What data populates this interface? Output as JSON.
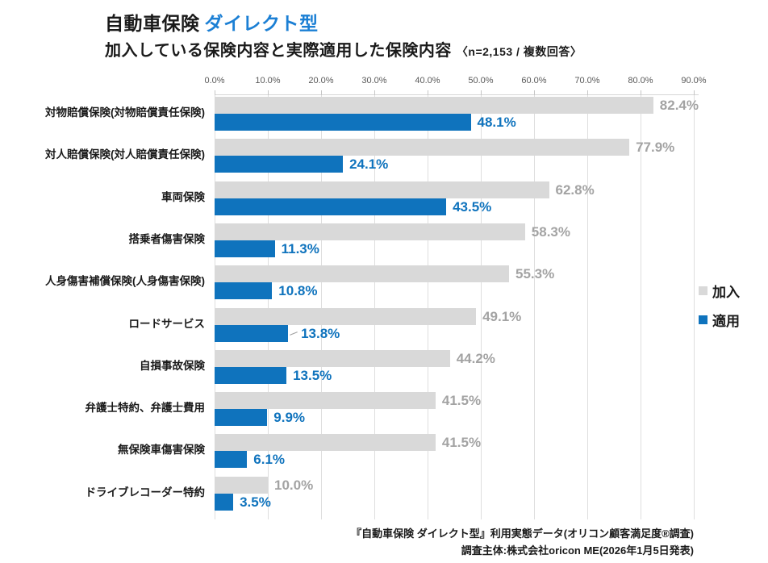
{
  "title": {
    "black": "自動車保険",
    "blue": "ダイレクト型"
  },
  "subtitle": {
    "main": "加入している保険内容と実際適用した保険内容",
    "note": "〈n=2,153 / 複数回答〉"
  },
  "colors": {
    "enrolled_bar": "#d9d9d9",
    "applied_bar": "#0f73bd",
    "enrolled_value_label": "#a3a3a3",
    "applied_value_label": "#0f73bd",
    "title_accent": "#1b7fd4",
    "axis_text": "#595959",
    "gridline": "#dedede"
  },
  "legend": [
    {
      "label": "加入",
      "color": "#d9d9d9"
    },
    {
      "label": "適用",
      "color": "#0f73bd"
    }
  ],
  "chart_data": {
    "type": "bar",
    "orientation": "horizontal",
    "title": "自動車保険 ダイレクト型 加入している保険内容と実際適用した保険内容",
    "sample_note": "n=2,153 / 複数回答",
    "categories": [
      "対物賠償保険(対物賠償責任保険)",
      "対人賠償保険(対人賠償責任保険)",
      "車両保険",
      "搭乗者傷害保険",
      "人身傷害補償保険(人身傷害保険)",
      "ロードサービス",
      "自損事故保険",
      "弁護士特約、弁護士費用",
      "無保険車傷害保険",
      "ドライブレコーダー特約"
    ],
    "series": [
      {
        "name": "加入",
        "color": "#d9d9d9",
        "label_color": "#a3a3a3",
        "values": [
          82.4,
          77.9,
          62.8,
          58.3,
          55.3,
          49.1,
          44.2,
          41.5,
          41.5,
          10.0
        ]
      },
      {
        "name": "適用",
        "color": "#0f73bd",
        "label_color": "#0f73bd",
        "values": [
          48.1,
          24.1,
          43.5,
          11.3,
          10.8,
          13.8,
          13.5,
          9.9,
          6.1,
          3.5
        ]
      }
    ],
    "xlim": [
      0,
      90
    ],
    "x_ticks": [
      "0.0%",
      "10.0%",
      "20.0%",
      "30.0%",
      "40.0%",
      "50.0%",
      "60.0%",
      "70.0%",
      "80.0%",
      "90.0%"
    ],
    "grid": true,
    "legend_position": "right",
    "leader_line_category_index": 5
  },
  "footer": {
    "line1": "『自動車保険 ダイレクト型』利用実態データ(オリコン顧客満足度®調査)",
    "line2": "調査主体:株式会社oricon ME(2026年1月5日発表)"
  }
}
